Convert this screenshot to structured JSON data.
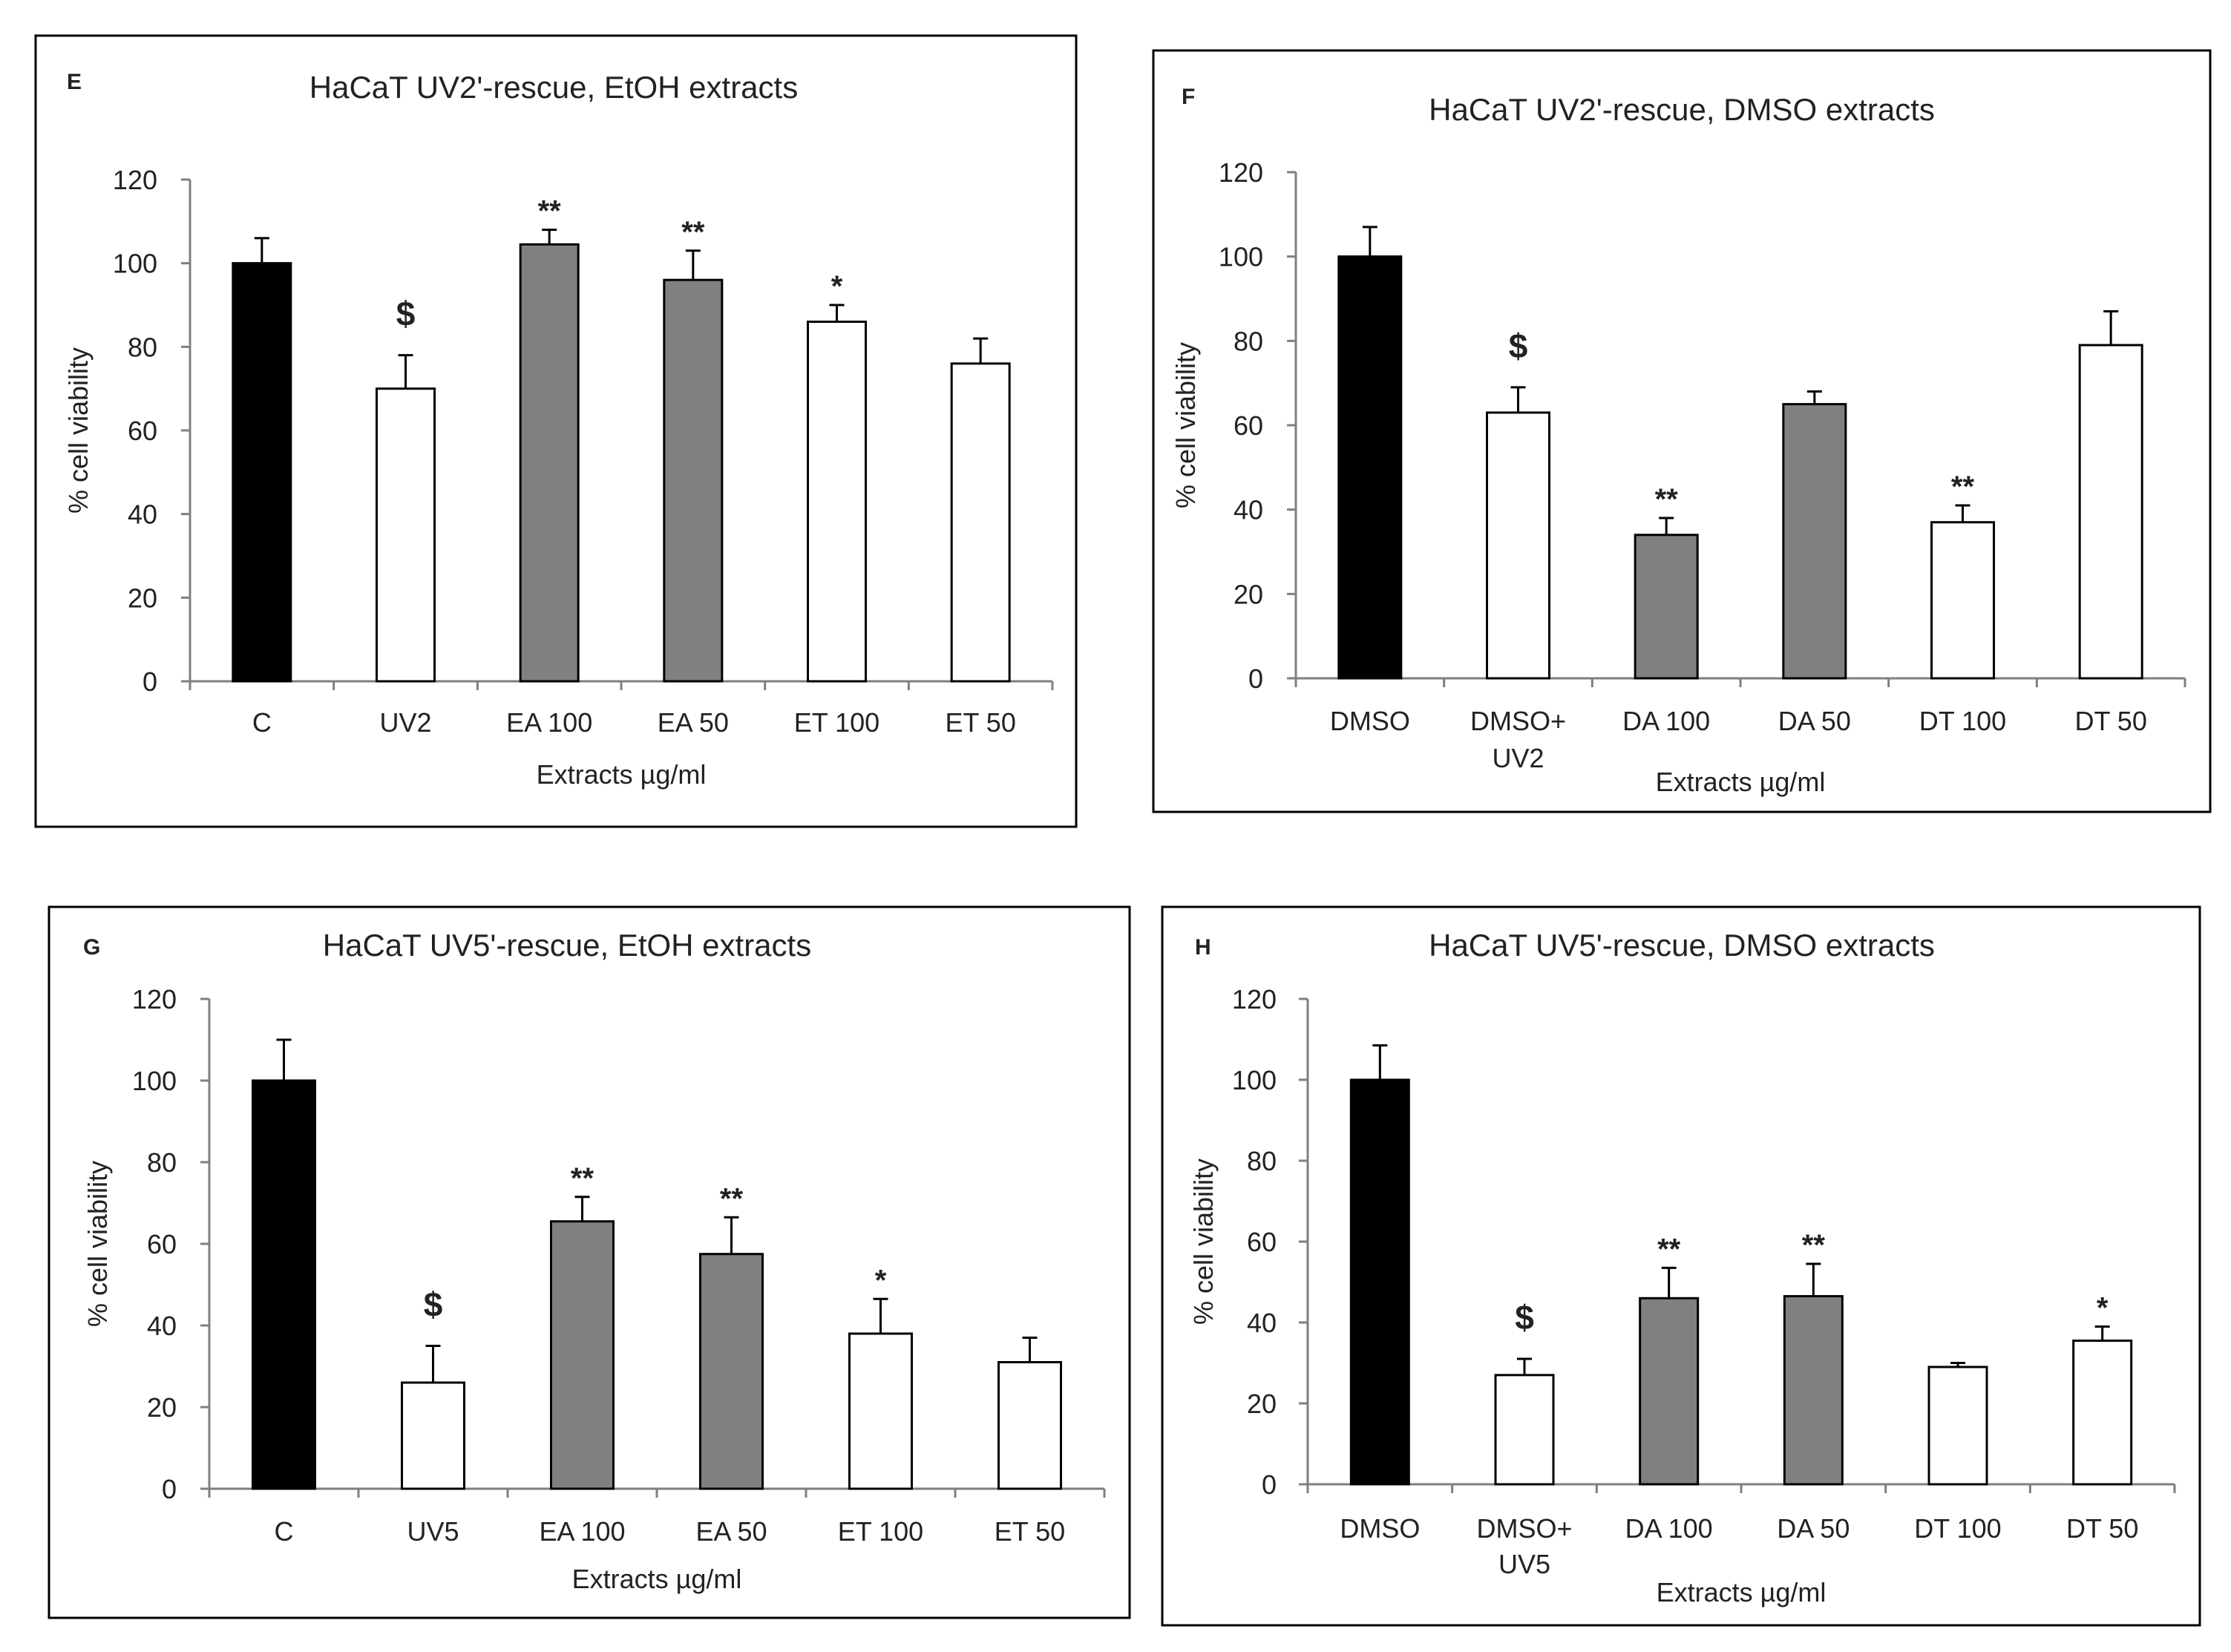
{
  "colors": {
    "black": "#000000",
    "gray": "#808080",
    "white": "#ffffff",
    "axis": "#7f7f7f",
    "text": "#222222"
  },
  "chart_data": [
    {
      "type": "bar",
      "panel_label": "E",
      "title": "HaCaT UV2'-rescue,  EtOH extracts",
      "xlabel": "Extracts µg/ml",
      "ylabel": "% cell viability",
      "ylim": [
        0,
        120
      ],
      "yticks": [
        "0",
        "20",
        "40",
        "60",
        "80",
        "100",
        "120"
      ],
      "grid": false,
      "categories": [
        [
          "C"
        ],
        [
          "UV2"
        ],
        [
          "EA 100"
        ],
        [
          "EA 50"
        ],
        [
          "ET 100"
        ],
        [
          "ET 50"
        ]
      ],
      "values": [
        100,
        70,
        104.5,
        96,
        86,
        76
      ],
      "errors": [
        6,
        8,
        3.5,
        7,
        4,
        6
      ],
      "fills": [
        "black",
        "white",
        "gray",
        "gray",
        "white",
        "white"
      ],
      "annotations": [
        "",
        "$",
        "**",
        "**",
        "*",
        ""
      ]
    },
    {
      "type": "bar",
      "panel_label": "F",
      "title": "HaCaT UV2'-rescue,  DMSO extracts",
      "xlabel": "Extracts µg/ml",
      "ylabel": "% cell viability",
      "ylim": [
        0,
        120
      ],
      "yticks": [
        "0",
        "20",
        "40",
        "60",
        "80",
        "100",
        "120"
      ],
      "grid": false,
      "categories": [
        [
          "DMSO"
        ],
        [
          "DMSO+",
          "UV2"
        ],
        [
          "DA 100"
        ],
        [
          "DA 50"
        ],
        [
          "DT 100"
        ],
        [
          "DT 50"
        ]
      ],
      "values": [
        100,
        63,
        34,
        65,
        37,
        79
      ],
      "errors": [
        7,
        6,
        4,
        3,
        4,
        8
      ],
      "fills": [
        "black",
        "white",
        "gray",
        "gray",
        "white",
        "white"
      ],
      "annotations": [
        "",
        "$",
        "**",
        "",
        "**",
        ""
      ]
    },
    {
      "type": "bar",
      "panel_label": "G",
      "title": "HaCaT UV5'-rescue,  EtOH extracts",
      "xlabel": "Extracts µg/ml",
      "ylabel": "% cell  viability",
      "ylim": [
        0,
        120
      ],
      "yticks": [
        "0",
        "20",
        "40",
        "60",
        "80",
        "100",
        "120"
      ],
      "grid": false,
      "categories": [
        [
          "C"
        ],
        [
          "UV5"
        ],
        [
          "EA 100"
        ],
        [
          "EA 50"
        ],
        [
          "ET 100"
        ],
        [
          "ET 50"
        ]
      ],
      "values": [
        100,
        26,
        65.5,
        57.5,
        38,
        31
      ],
      "errors": [
        10,
        9,
        6,
        9,
        8.5,
        6
      ],
      "fills": [
        "black",
        "white",
        "gray",
        "gray",
        "white",
        "white"
      ],
      "annotations": [
        "",
        "$",
        "**",
        "**",
        "*",
        ""
      ]
    },
    {
      "type": "bar",
      "panel_label": "H",
      "title": "HaCaT UV5'-rescue,  DMSO extracts",
      "xlabel": "Extracts µg/ml",
      "ylabel": "% cell viability",
      "ylim": [
        0,
        120
      ],
      "yticks": [
        "0",
        "20",
        "40",
        "60",
        "80",
        "100",
        "120"
      ],
      "grid": false,
      "categories": [
        [
          "DMSO"
        ],
        [
          "DMSO+",
          "UV5"
        ],
        [
          "DA 100"
        ],
        [
          "DA 50"
        ],
        [
          "DT 100"
        ],
        [
          "DT 50"
        ]
      ],
      "values": [
        100,
        27,
        46,
        46.5,
        29,
        35.5
      ],
      "errors": [
        8.5,
        4,
        7.5,
        8,
        1,
        3.5
      ],
      "fills": [
        "black",
        "white",
        "gray",
        "gray",
        "white",
        "white"
      ],
      "annotations": [
        "",
        "$",
        "**",
        "**",
        "",
        "*"
      ]
    }
  ]
}
